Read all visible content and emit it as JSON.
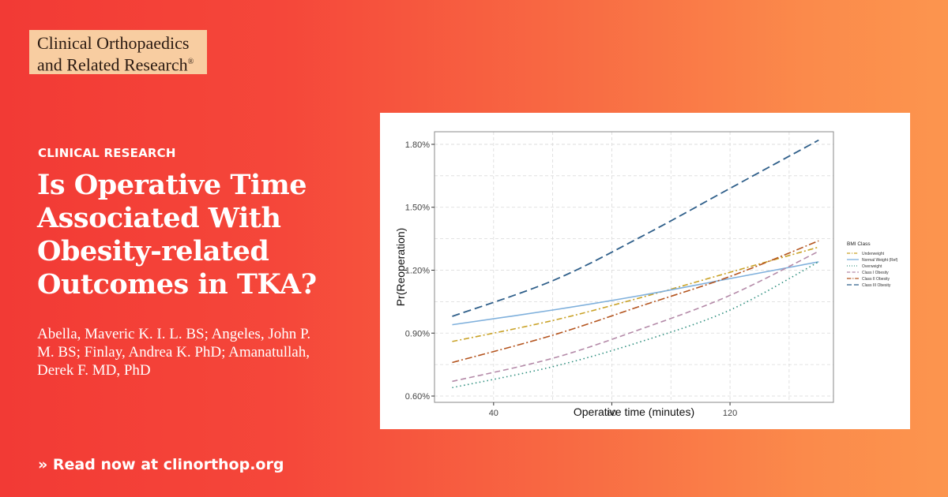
{
  "logo": {
    "line1": "Clinical Orthopaedics",
    "line2": "and Related Research",
    "reg": "®"
  },
  "kicker": "CLINICAL RESEARCH",
  "headline": "Is Operative Time Associated With Obesity-related Outcomes in TKA?",
  "authors": "Abella, Maveric K. I. L. BS; Angeles, John P. M. BS; Finlay, Andrea K. PhD; Amanatullah, Derek F. MD, PhD",
  "cta": "» Read now at clinorthop.org",
  "colors": {
    "background_left": "#f23a35",
    "background_right": "#fc954e",
    "logo_bg": "#f8cda1"
  },
  "chart_data": {
    "type": "line",
    "title": "",
    "xlabel": "Operative time (minutes)",
    "ylabel": "Pr(Reoperation)",
    "xlim": [
      20,
      155
    ],
    "ylim": [
      0.0057,
      0.0186
    ],
    "xticks": [
      40,
      80,
      120
    ],
    "yticks": [
      0.006,
      0.009,
      0.012,
      0.015,
      0.018
    ],
    "ytick_labels": [
      "0.60%",
      "0.90%",
      "1.20%",
      "1.50%",
      "1.80%"
    ],
    "grid": true,
    "legend_title": "BMI Class",
    "legend_position": "right",
    "x": [
      26,
      60,
      90,
      120,
      150
    ],
    "series": [
      {
        "name": "Underweight",
        "color": "#c9a227",
        "dash": "7,3,2,3",
        "values": [
          0.0086,
          0.0096,
          0.0107,
          0.0119,
          0.0131
        ]
      },
      {
        "name": "Normal Weight (Ref)",
        "color": "#7fb0dc",
        "dash": "",
        "values": [
          0.0094,
          0.0101,
          0.0108,
          0.0116,
          0.0124
        ]
      },
      {
        "name": "Overweight",
        "color": "#2f8f7f",
        "dash": "1.5,3.5",
        "values": [
          0.0064,
          0.0074,
          0.0086,
          0.0101,
          0.0124
        ]
      },
      {
        "name": "Class I Obesity",
        "color": "#b48aa8",
        "dash": "7,4",
        "values": [
          0.0067,
          0.0078,
          0.0092,
          0.0108,
          0.0129
        ]
      },
      {
        "name": "Class II Obesity",
        "color": "#b4541e",
        "dash": "9,3,2,3",
        "values": [
          0.0076,
          0.0089,
          0.0103,
          0.0117,
          0.0134
        ]
      },
      {
        "name": "Class III Obesity",
        "color": "#2f5f8a",
        "dash": "10,5",
        "values": [
          0.0098,
          0.0115,
          0.0136,
          0.0159,
          0.0182
        ]
      }
    ]
  }
}
